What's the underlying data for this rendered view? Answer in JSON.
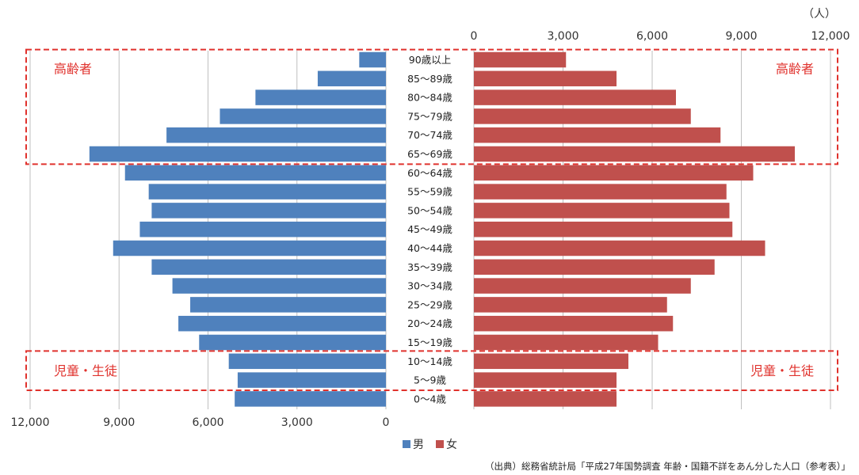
{
  "chart_data": {
    "type": "bar",
    "orientation": "horizontal",
    "layout": "population-pyramid",
    "unit_label": "（人）",
    "categories": [
      "0～4歳",
      "5～9歳",
      "10～14歳",
      "15～19歳",
      "20～24歳",
      "25～29歳",
      "30～34歳",
      "35～39歳",
      "40～44歳",
      "45～49歳",
      "50～54歳",
      "55～59歳",
      "60～64歳",
      "65～69歳",
      "70～74歳",
      "75～79歳",
      "80～84歳",
      "85～89歳",
      "90歳以上"
    ],
    "series": [
      {
        "name": "男",
        "color": "#4f81bd",
        "side": "left",
        "values": [
          5100,
          5000,
          5300,
          6300,
          7000,
          6600,
          7200,
          7900,
          9200,
          8300,
          7900,
          8000,
          8800,
          10000,
          7400,
          5600,
          4400,
          2300,
          900
        ]
      },
      {
        "name": "女",
        "color": "#c0504d",
        "side": "right",
        "values": [
          4800,
          4800,
          5200,
          6200,
          6700,
          6500,
          7300,
          8100,
          9800,
          8700,
          8600,
          8500,
          9400,
          10800,
          8300,
          7300,
          6800,
          4800,
          3100
        ]
      }
    ],
    "left_axis_ticks": [
      "12,000",
      "9,000",
      "6,000",
      "3,000",
      "0"
    ],
    "right_axis_ticks": [
      "0",
      "3,000",
      "6,000",
      "9,000",
      "12,000"
    ],
    "xlim": [
      0,
      12000
    ],
    "grid": true,
    "legend_position": "bottom",
    "annotations": [
      {
        "label_left": "高齢者",
        "label_right": "高齢者",
        "range": [
          "65～69歳",
          "90歳以上"
        ]
      },
      {
        "label_left": "児童・生徒",
        "label_right": "児童・生徒",
        "range": [
          "5～9歳",
          "10～14歳"
        ]
      }
    ],
    "source": "（出典）総務省統計局「平成27年国勢調査 年齢・国籍不詳をあん分した人口（参考表）」"
  }
}
